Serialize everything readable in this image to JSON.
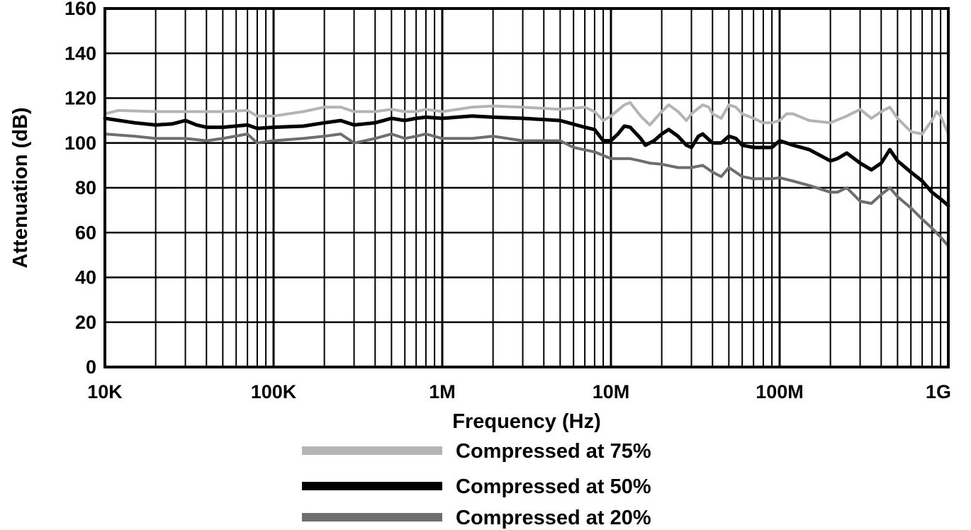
{
  "chart_data": {
    "type": "line",
    "xscale": "log",
    "xlim": [
      10000,
      1000000000
    ],
    "ylim": [
      0,
      160
    ],
    "xlabel": "Frequency (Hz)",
    "ylabel": "Attenuation (dB)",
    "xticks": [
      {
        "value": 10000,
        "label": "10K"
      },
      {
        "value": 100000,
        "label": "100K"
      },
      {
        "value": 1000000,
        "label": "1M"
      },
      {
        "value": 10000000,
        "label": "10M"
      },
      {
        "value": 100000000,
        "label": "100M"
      },
      {
        "value": 1000000000,
        "label": "1G"
      }
    ],
    "yticks": [
      {
        "value": 0,
        "label": "0"
      },
      {
        "value": 20,
        "label": "20"
      },
      {
        "value": 40,
        "label": "40"
      },
      {
        "value": 60,
        "label": "60"
      },
      {
        "value": 80,
        "label": "80"
      },
      {
        "value": 100,
        "label": "100"
      },
      {
        "value": 120,
        "label": "120"
      },
      {
        "value": 140,
        "label": "140"
      },
      {
        "value": 160,
        "label": "160"
      }
    ],
    "grid": true,
    "legend_position": "bottom",
    "series": [
      {
        "name": "Compressed at 75%",
        "color": "#b4b4b4",
        "points": [
          [
            10000,
            113
          ],
          [
            12000,
            114.5
          ],
          [
            20000,
            114
          ],
          [
            30000,
            114
          ],
          [
            50000,
            114
          ],
          [
            70000,
            114.5
          ],
          [
            80000,
            112
          ],
          [
            100000,
            112
          ],
          [
            150000,
            114
          ],
          [
            200000,
            116
          ],
          [
            250000,
            116
          ],
          [
            300000,
            114
          ],
          [
            400000,
            114
          ],
          [
            500000,
            115
          ],
          [
            600000,
            114
          ],
          [
            700000,
            114
          ],
          [
            800000,
            115
          ],
          [
            1000000,
            114
          ],
          [
            1500000,
            116
          ],
          [
            2000000,
            116.5
          ],
          [
            3000000,
            116
          ],
          [
            5000000,
            115
          ],
          [
            7000000,
            116
          ],
          [
            8000000,
            114
          ],
          [
            9000000,
            110
          ],
          [
            10000000,
            112
          ],
          [
            12000000,
            117
          ],
          [
            13000000,
            118
          ],
          [
            15000000,
            112
          ],
          [
            17000000,
            108
          ],
          [
            20000000,
            114
          ],
          [
            22000000,
            117
          ],
          [
            25000000,
            114
          ],
          [
            28000000,
            110
          ],
          [
            30000000,
            113
          ],
          [
            35000000,
            117
          ],
          [
            38000000,
            116
          ],
          [
            40000000,
            113
          ],
          [
            45000000,
            111
          ],
          [
            50000000,
            117
          ],
          [
            55000000,
            116
          ],
          [
            60000000,
            113
          ],
          [
            70000000,
            111
          ],
          [
            80000000,
            109
          ],
          [
            90000000,
            109
          ],
          [
            100000000,
            110
          ],
          [
            110000000,
            113
          ],
          [
            120000000,
            113
          ],
          [
            150000000,
            110
          ],
          [
            200000000,
            109
          ],
          [
            250000000,
            112
          ],
          [
            300000000,
            115
          ],
          [
            350000000,
            111
          ],
          [
            400000000,
            114
          ],
          [
            450000000,
            116
          ],
          [
            500000000,
            111
          ],
          [
            600000000,
            105
          ],
          [
            700000000,
            104
          ],
          [
            800000000,
            110
          ],
          [
            850000000,
            114
          ],
          [
            900000000,
            112
          ],
          [
            1000000000,
            104
          ]
        ]
      },
      {
        "name": "Compressed at 50%",
        "color": "#000000",
        "points": [
          [
            10000,
            111
          ],
          [
            15000,
            109
          ],
          [
            20000,
            108
          ],
          [
            25000,
            108.5
          ],
          [
            30000,
            110
          ],
          [
            35000,
            108
          ],
          [
            40000,
            107
          ],
          [
            50000,
            107
          ],
          [
            70000,
            108
          ],
          [
            80000,
            106.5
          ],
          [
            100000,
            107
          ],
          [
            150000,
            107.5
          ],
          [
            200000,
            109
          ],
          [
            250000,
            110
          ],
          [
            300000,
            108
          ],
          [
            400000,
            109
          ],
          [
            500000,
            111
          ],
          [
            600000,
            110
          ],
          [
            700000,
            111
          ],
          [
            800000,
            111.5
          ],
          [
            1000000,
            111
          ],
          [
            1500000,
            112
          ],
          [
            2000000,
            111.5
          ],
          [
            3000000,
            111
          ],
          [
            5000000,
            110
          ],
          [
            7000000,
            107
          ],
          [
            8000000,
            106
          ],
          [
            9000000,
            101
          ],
          [
            10000000,
            101
          ],
          [
            11000000,
            104
          ],
          [
            12000000,
            107.5
          ],
          [
            13000000,
            107
          ],
          [
            15000000,
            102
          ],
          [
            16000000,
            99
          ],
          [
            18000000,
            101
          ],
          [
            20000000,
            104
          ],
          [
            22000000,
            106
          ],
          [
            25000000,
            103
          ],
          [
            28000000,
            99
          ],
          [
            30000000,
            98
          ],
          [
            33000000,
            103
          ],
          [
            35000000,
            104
          ],
          [
            40000000,
            100
          ],
          [
            45000000,
            100
          ],
          [
            50000000,
            103
          ],
          [
            55000000,
            102
          ],
          [
            60000000,
            99
          ],
          [
            70000000,
            98
          ],
          [
            90000000,
            98
          ],
          [
            100000000,
            101
          ],
          [
            120000000,
            99
          ],
          [
            150000000,
            97
          ],
          [
            200000000,
            92
          ],
          [
            220000000,
            93
          ],
          [
            250000000,
            95.5
          ],
          [
            300000000,
            91
          ],
          [
            350000000,
            88
          ],
          [
            400000000,
            91
          ],
          [
            450000000,
            97
          ],
          [
            500000000,
            92
          ],
          [
            600000000,
            87
          ],
          [
            700000000,
            83
          ],
          [
            800000000,
            78
          ],
          [
            900000000,
            75
          ],
          [
            1000000000,
            72
          ]
        ]
      },
      {
        "name": "Compressed at 20%",
        "color": "#6e6e6e",
        "points": [
          [
            10000,
            104
          ],
          [
            15000,
            103
          ],
          [
            20000,
            102
          ],
          [
            30000,
            102
          ],
          [
            40000,
            101
          ],
          [
            50000,
            102
          ],
          [
            70000,
            104
          ],
          [
            80000,
            100
          ],
          [
            100000,
            101
          ],
          [
            150000,
            102
          ],
          [
            200000,
            103
          ],
          [
            250000,
            104
          ],
          [
            300000,
            100
          ],
          [
            400000,
            102
          ],
          [
            500000,
            104
          ],
          [
            600000,
            102
          ],
          [
            700000,
            103
          ],
          [
            800000,
            104
          ],
          [
            1000000,
            102
          ],
          [
            1500000,
            102
          ],
          [
            2000000,
            103
          ],
          [
            3000000,
            101
          ],
          [
            5000000,
            101
          ],
          [
            6000000,
            98
          ],
          [
            8000000,
            96
          ],
          [
            10000000,
            93
          ],
          [
            13000000,
            93
          ],
          [
            15000000,
            92
          ],
          [
            17000000,
            91
          ],
          [
            20000000,
            90.5
          ],
          [
            25000000,
            89
          ],
          [
            30000000,
            89
          ],
          [
            35000000,
            90
          ],
          [
            40000000,
            87
          ],
          [
            45000000,
            85
          ],
          [
            50000000,
            89
          ],
          [
            60000000,
            85
          ],
          [
            70000000,
            84
          ],
          [
            90000000,
            84
          ],
          [
            100000000,
            84.5
          ],
          [
            120000000,
            83
          ],
          [
            150000000,
            81
          ],
          [
            200000000,
            78
          ],
          [
            220000000,
            78
          ],
          [
            250000000,
            80
          ],
          [
            300000000,
            74
          ],
          [
            350000000,
            73
          ],
          [
            400000000,
            77
          ],
          [
            450000000,
            80
          ],
          [
            500000000,
            76
          ],
          [
            600000000,
            71
          ],
          [
            700000000,
            66
          ],
          [
            800000000,
            62
          ],
          [
            900000000,
            58
          ],
          [
            1000000000,
            54
          ]
        ]
      }
    ]
  }
}
